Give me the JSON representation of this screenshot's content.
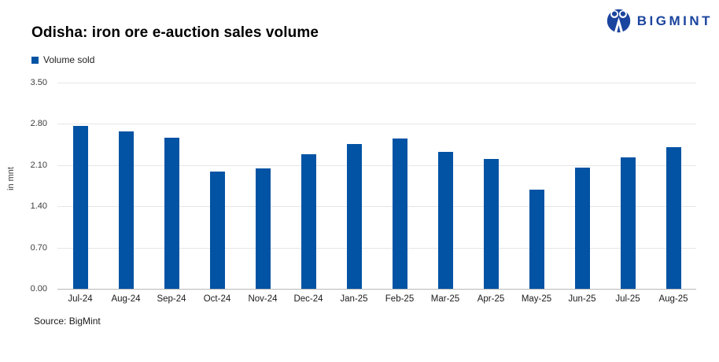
{
  "header": {
    "title": "Odisha: iron ore e-auction sales volume",
    "logo_text": "BIGMINT"
  },
  "legend": {
    "label": "Volume sold"
  },
  "footer": {
    "source": "Source: BigMint"
  },
  "colors": {
    "bar": "#0353a4",
    "logo_blue": "#1b449e",
    "gridline": "#e6e6e6",
    "axis_line": "#b9b9b9"
  },
  "chart_data": {
    "type": "bar",
    "title": "Odisha: iron ore e-auction sales volume",
    "categories": [
      "Jul-24",
      "Aug-24",
      "Sep-24",
      "Oct-24",
      "Nov-24",
      "Dec-24",
      "Jan-25",
      "Feb-25",
      "Mar-25",
      "Apr-25",
      "May-25",
      "Jun-25",
      "Jul-25",
      "Aug-25"
    ],
    "series": [
      {
        "name": "Volume sold",
        "values": [
          2.76,
          2.67,
          2.57,
          1.99,
          2.04,
          2.29,
          2.46,
          2.55,
          2.33,
          2.2,
          1.68,
          2.06,
          2.23,
          2.4
        ]
      }
    ],
    "xlabel": "",
    "ylabel": "in mnt",
    "ylim": [
      0,
      3.5
    ],
    "yticks": [
      3.5,
      2.8,
      2.1,
      1.4,
      0.7,
      0.0
    ],
    "grid": true,
    "legend_position": "top-left"
  }
}
